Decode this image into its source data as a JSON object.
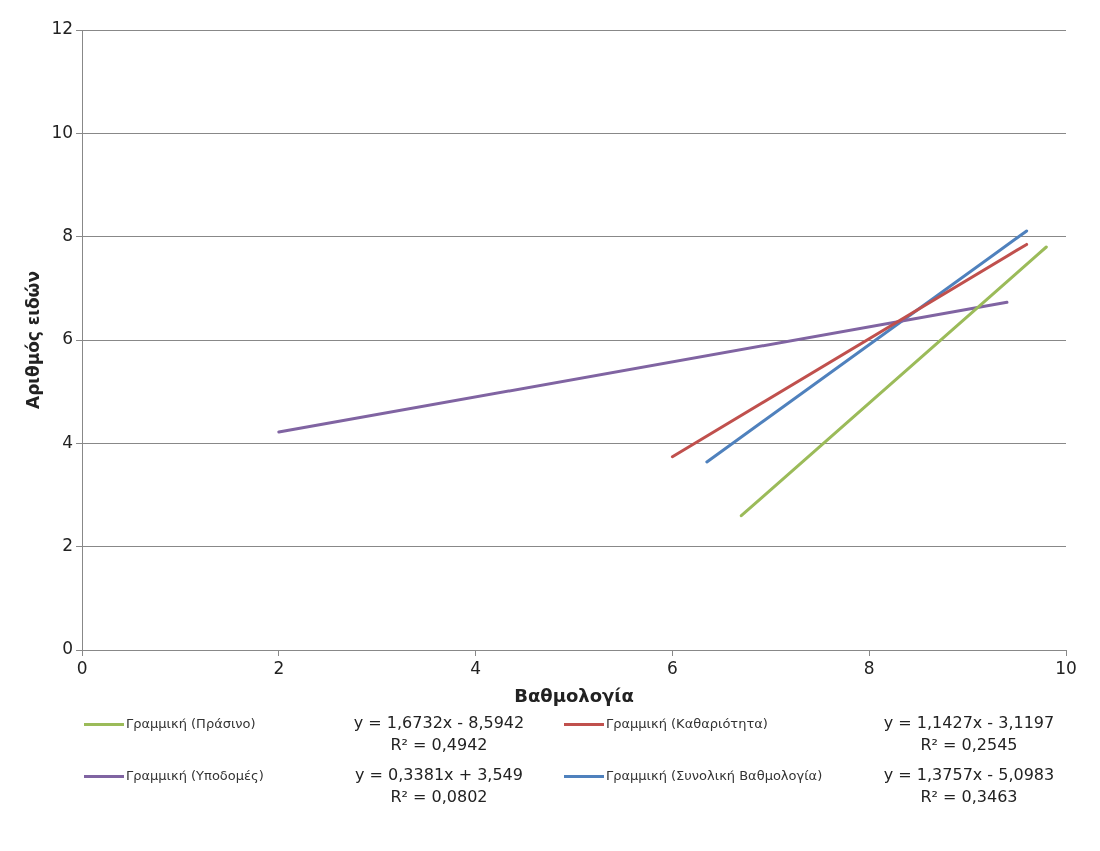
{
  "chart_data": {
    "type": "line",
    "xlabel": "Βαθμολογία",
    "ylabel": "Αριθμός ειδών",
    "xlim": [
      0,
      10
    ],
    "xticks": [
      0,
      2,
      4,
      6,
      8,
      10
    ],
    "ylim": [
      0,
      12
    ],
    "yticks": [
      0,
      2,
      4,
      6,
      8,
      10,
      12
    ],
    "grid": "y",
    "legend": "bottom",
    "marker": "none",
    "line_style": "solid",
    "series": [
      {
        "name": "Γραμμική (Πράσινο)",
        "color": "#9bbb59",
        "x": [
          6.7,
          9.8
        ],
        "values": [
          2.6,
          7.8
        ]
      },
      {
        "name": "Γραμμική (Καθαριότητα)",
        "color": "#c0504d",
        "x": [
          6.0,
          9.6
        ],
        "values": [
          3.74,
          7.85
        ]
      },
      {
        "name": "Γραμμική (Υποδομές)",
        "color": "#8064a2",
        "x": [
          2.0,
          9.4
        ],
        "values": [
          4.22,
          6.73
        ]
      },
      {
        "name": "Γραμμική (Συνολική Βαθμολογία)",
        "color": "#4f81bd",
        "x": [
          6.35,
          9.6
        ],
        "values": [
          3.64,
          8.11
        ]
      }
    ],
    "annotations": [
      "y = 1,6732x - 8,5942\nR² = 0,4942",
      "y = 1,1427x - 3,1197\nR² = 0,2545",
      "y = 0,3381x + 3,549\nR² = 0,0802",
      "y = 1,3757x - 5,0983\nR² = 0,3463"
    ]
  }
}
